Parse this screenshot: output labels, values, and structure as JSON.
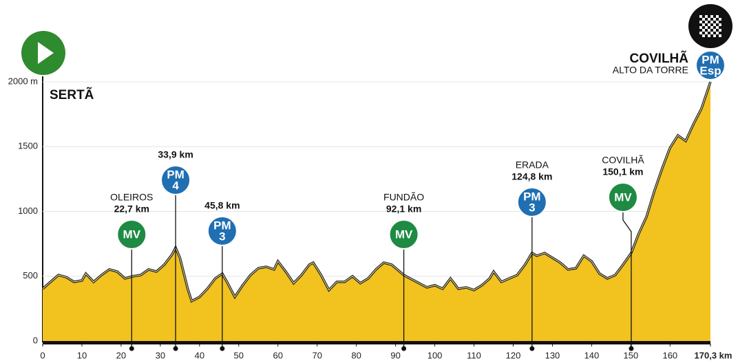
{
  "chart_data": {
    "type": "area",
    "x": [
      0,
      2,
      4,
      6,
      8,
      10,
      11,
      13,
      15,
      17,
      19,
      21,
      23,
      25,
      27,
      29,
      31,
      33,
      33.9,
      35,
      37,
      38,
      40,
      42,
      44,
      45.8,
      47,
      49,
      51,
      53,
      55,
      57,
      59,
      60,
      62,
      64,
      66,
      68,
      69,
      71,
      73,
      75,
      77,
      79,
      81,
      83,
      85,
      87,
      89,
      92.1,
      94,
      96,
      98,
      100,
      102,
      104,
      106,
      108,
      110,
      112,
      114,
      115,
      117,
      119,
      121,
      123,
      124.8,
      126,
      128,
      130,
      132,
      134,
      136,
      138,
      140,
      142,
      144,
      146,
      148,
      150.1,
      152,
      154,
      156,
      158,
      160,
      162,
      164,
      166,
      168,
      170.3
    ],
    "values": [
      403,
      456,
      509,
      493,
      456,
      467,
      520,
      456,
      509,
      552,
      536,
      483,
      499,
      509,
      552,
      536,
      589,
      668,
      721,
      642,
      403,
      308,
      340,
      403,
      483,
      520,
      456,
      340,
      430,
      509,
      562,
      573,
      552,
      615,
      536,
      446,
      509,
      589,
      605,
      509,
      393,
      456,
      456,
      499,
      446,
      483,
      552,
      605,
      589,
      509,
      478,
      446,
      414,
      430,
      403,
      483,
      403,
      414,
      393,
      430,
      483,
      536,
      456,
      483,
      509,
      589,
      679,
      658,
      679,
      642,
      605,
      552,
      562,
      658,
      615,
      520,
      483,
      509,
      589,
      679,
      828,
      960,
      1157,
      1332,
      1491,
      1586,
      1544,
      1676,
      1793,
      2000
    ],
    "color": "#f2c21e",
    "xlim": [
      0,
      170.3
    ],
    "ylim": [
      0,
      2000
    ],
    "xticks": [
      0,
      10,
      20,
      30,
      40,
      50,
      60,
      70,
      80,
      90,
      100,
      110,
      120,
      130,
      140,
      150,
      160,
      {
        "value": 170.3,
        "label": "170,3 km"
      }
    ],
    "yticks": [
      0,
      500,
      1000,
      1500,
      {
        "value": 2000,
        "label": "2000 m"
      }
    ],
    "start": "SERTÃ",
    "finish": {
      "name": "COVILHÃ",
      "subtitle": "ALTO DA TORRE",
      "badge": "PM",
      "badge_sub": "Esp"
    },
    "points": [
      {
        "name": "OLEIROS",
        "km": {
          "value": 22.7,
          "label": "22,7 km"
        },
        "badge": "MV",
        "color": "#1e8a44"
      },
      {
        "km": {
          "value": 33.9,
          "label": "33,9 km"
        },
        "badge": "PM",
        "badge_sub": "4",
        "color": "#1f6fb2"
      },
      {
        "km": {
          "value": 45.8,
          "label": "45,8 km"
        },
        "badge": "PM",
        "badge_sub": "3",
        "color": "#1f6fb2"
      },
      {
        "name": "FUNDÃO",
        "km": {
          "value": 92.1,
          "label": "92,1 km"
        },
        "badge": "MV",
        "color": "#1e8a44"
      },
      {
        "name": "ERADA",
        "km": {
          "value": 124.8,
          "label": "124,8 km"
        },
        "badge": "PM",
        "badge_sub": "3",
        "color": "#1f6fb2"
      },
      {
        "name": "COVILHÃ",
        "km": {
          "value": 150.1,
          "label": "150,1 km"
        },
        "badge": "MV",
        "color": "#1e8a44"
      }
    ]
  }
}
